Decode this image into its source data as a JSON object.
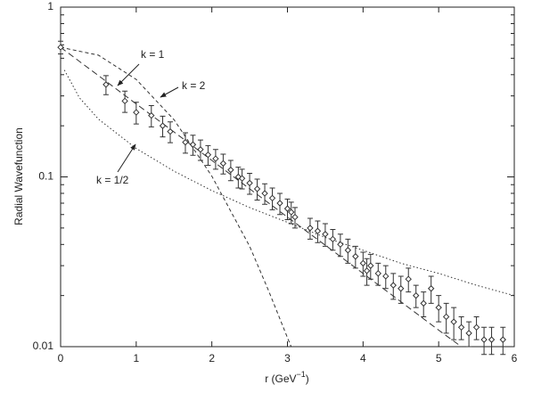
{
  "chart_data": {
    "type": "scatter",
    "x_label": {
      "text": "r  (GeV",
      "superscript": "−1",
      "suffix": ")"
    },
    "y_label": "Radial Wavefunction",
    "xlim": [
      0,
      6
    ],
    "xticks": [
      0,
      1,
      2,
      3,
      4,
      5,
      6
    ],
    "ylim": [
      0.01,
      1
    ],
    "yticks": [
      0.01,
      0.1,
      1
    ],
    "yminorticks": [
      0.02,
      0.03,
      0.04,
      0.05,
      0.06,
      0.07,
      0.08,
      0.09,
      0.2,
      0.3,
      0.4,
      0.5,
      0.6,
      0.7,
      0.8,
      0.9
    ],
    "log_y": true,
    "points": {
      "x": [
        0,
        0.6,
        0.85,
        1.0,
        1.2,
        1.35,
        1.45,
        1.65,
        1.75,
        1.85,
        1.95,
        2.05,
        2.15,
        2.25,
        2.35,
        2.4,
        2.5,
        2.6,
        2.7,
        2.8,
        2.9,
        3.0,
        3.05,
        3.1,
        3.3,
        3.4,
        3.5,
        3.6,
        3.7,
        3.8,
        3.9,
        4.0,
        4.05,
        4.1,
        4.2,
        4.3,
        4.4,
        4.5,
        4.6,
        4.7,
        4.8,
        4.9,
        5.0,
        5.1,
        5.2,
        5.3,
        5.4,
        5.5,
        5.6,
        5.7,
        5.85
      ],
      "values": [
        0.58,
        0.35,
        0.28,
        0.24,
        0.23,
        0.2,
        0.185,
        0.16,
        0.155,
        0.145,
        0.135,
        0.128,
        0.12,
        0.11,
        0.1,
        0.098,
        0.092,
        0.085,
        0.08,
        0.075,
        0.07,
        0.065,
        0.062,
        0.058,
        0.05,
        0.048,
        0.046,
        0.043,
        0.04,
        0.037,
        0.034,
        0.031,
        0.028,
        0.03,
        0.027,
        0.026,
        0.023,
        0.022,
        0.025,
        0.02,
        0.018,
        0.022,
        0.017,
        0.015,
        0.014,
        0.013,
        0.012,
        0.013,
        0.011,
        0.011,
        0.011
      ],
      "errors": [
        0.05,
        0.045,
        0.04,
        0.035,
        0.033,
        0.028,
        0.026,
        0.022,
        0.021,
        0.02,
        0.018,
        0.017,
        0.016,
        0.015,
        0.014,
        0.013,
        0.013,
        0.012,
        0.011,
        0.011,
        0.01,
        0.009,
        0.009,
        0.008,
        0.007,
        0.007,
        0.007,
        0.006,
        0.006,
        0.006,
        0.005,
        0.005,
        0.005,
        0.005,
        0.004,
        0.004,
        0.004,
        0.004,
        0.004,
        0.003,
        0.003,
        0.004,
        0.003,
        0.003,
        0.003,
        0.002,
        0.002,
        0.002,
        0.002,
        0.002,
        0.002
      ],
      "color": "#333333"
    },
    "series": [
      {
        "name": "k = 1",
        "dash": "7,4",
        "x": [
          0,
          0.5,
          1,
          1.5,
          2,
          2.5,
          3,
          3.5,
          4,
          4.5,
          5,
          5.3
        ],
        "values": [
          0.58,
          0.395,
          0.269,
          0.184,
          0.125,
          0.085,
          0.058,
          0.0396,
          0.027,
          0.0184,
          0.0125,
          0.01
        ]
      },
      {
        "name": "k = 2",
        "dash": "4,3",
        "x": [
          0,
          0.5,
          1,
          1.5,
          2,
          2.5,
          2.75,
          3,
          3.05
        ],
        "values": [
          0.58,
          0.521,
          0.375,
          0.217,
          0.101,
          0.039,
          0.0214,
          0.0113,
          0.01
        ]
      },
      {
        "name": "k = 1/2",
        "dash": "1.5,2.5",
        "x": [
          0.05,
          0.25,
          0.5,
          1,
          1.5,
          2,
          2.5,
          3,
          3.5,
          4,
          4.5,
          5,
          5.5,
          6
        ],
        "values": [
          0.426,
          0.292,
          0.219,
          0.147,
          0.108,
          0.083,
          0.066,
          0.054,
          0.044,
          0.037,
          0.031,
          0.027,
          0.023,
          0.02
        ]
      }
    ]
  }
}
